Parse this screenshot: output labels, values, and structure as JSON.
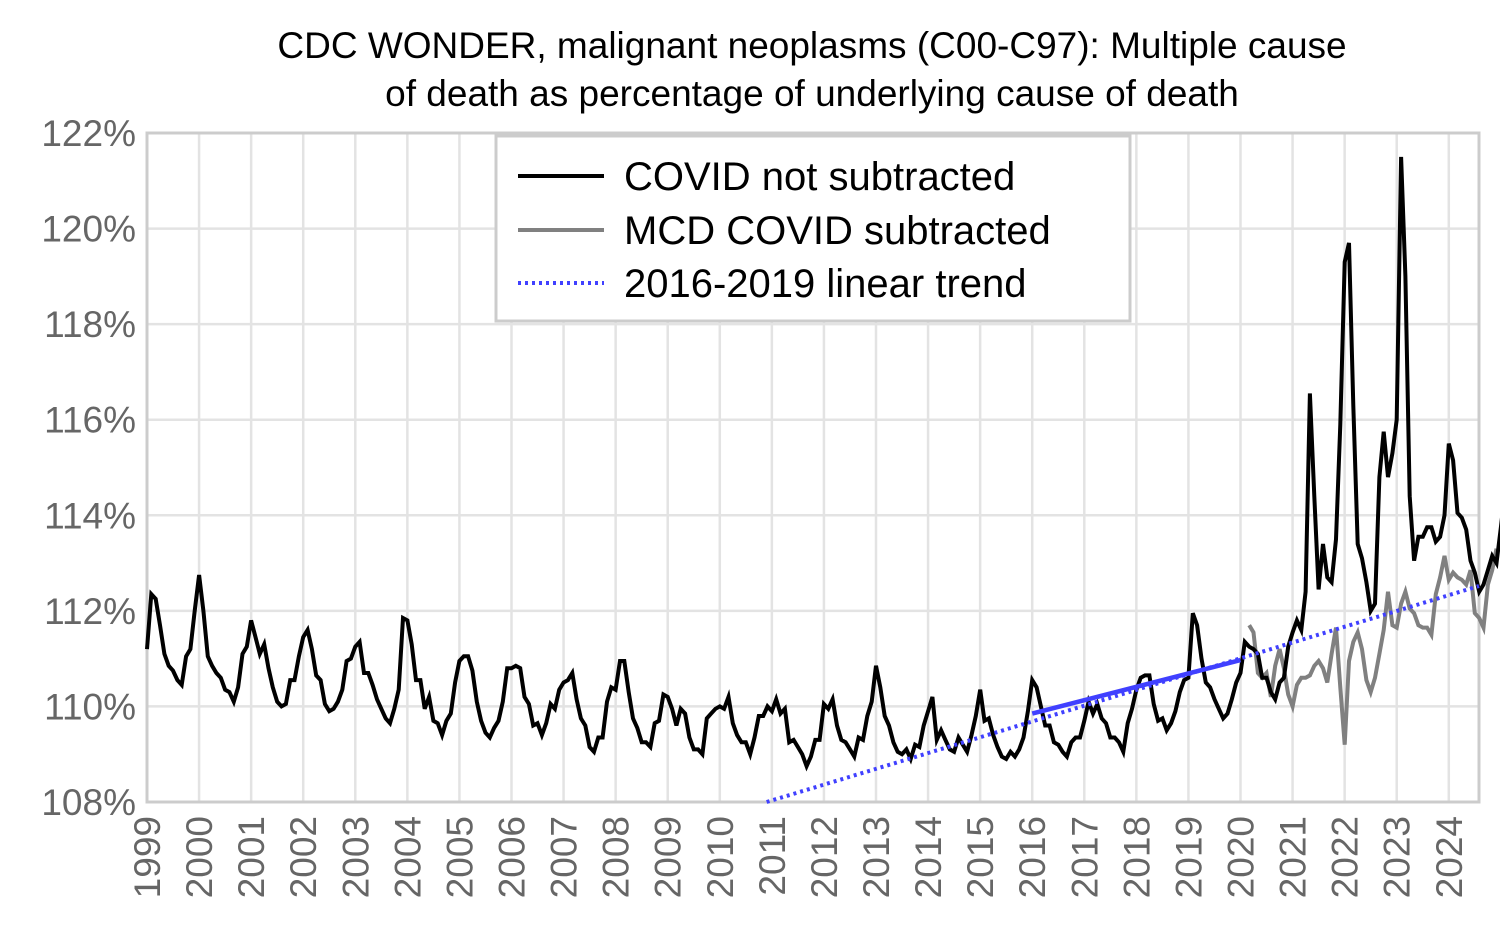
{
  "chart_data": {
    "type": "line",
    "title": "CDC WONDER, malignant neoplasms (C00-C97): Multiple cause of death as percentage of underlying cause of death",
    "title_lines": [
      "CDC WONDER, malignant neoplasms (C00-C97): Multiple cause",
      "of death as percentage of underlying cause of death"
    ],
    "xlabel": "",
    "ylabel": "",
    "x_range": [
      1999.0,
      2024.58
    ],
    "ylim": [
      108,
      122
    ],
    "y_ticks": [
      108,
      110,
      112,
      114,
      116,
      118,
      120,
      122
    ],
    "y_tick_labels": [
      "108%",
      "110%",
      "112%",
      "114%",
      "116%",
      "118%",
      "120%",
      "122%"
    ],
    "x_ticks": [
      1999,
      2000,
      2001,
      2002,
      2003,
      2004,
      2005,
      2006,
      2007,
      2008,
      2009,
      2010,
      2011,
      2012,
      2013,
      2014,
      2015,
      2016,
      2017,
      2018,
      2019,
      2020,
      2021,
      2022,
      2023,
      2024
    ],
    "x_tick_labels": [
      "1999",
      "2000",
      "2001",
      "2002",
      "2003",
      "2004",
      "2005",
      "2006",
      "2007",
      "2008",
      "2009",
      "2010",
      "2011",
      "2012",
      "2013",
      "2014",
      "2015",
      "2016",
      "2017",
      "2018",
      "2019",
      "2020",
      "2021",
      "2022",
      "2023",
      "2024"
    ],
    "grid": true,
    "legend_position": "top-center",
    "series": [
      {
        "name": "COVID not subtracted",
        "color": "#000000",
        "style": "solid",
        "start": "1999-01",
        "frequency": "monthly",
        "values": [
          111.2,
          112.35,
          112.25,
          111.7,
          111.1,
          110.85,
          110.75,
          110.55,
          110.45,
          111.05,
          111.2,
          112.0,
          112.75,
          112.0,
          111.05,
          110.85,
          110.7,
          110.6,
          110.35,
          110.3,
          110.1,
          110.4,
          111.1,
          111.25,
          111.8,
          111.45,
          111.1,
          111.3,
          110.8,
          110.4,
          110.1,
          110.0,
          110.05,
          110.55,
          110.55,
          111.05,
          111.45,
          111.6,
          111.2,
          110.65,
          110.55,
          110.05,
          109.9,
          109.95,
          110.1,
          110.35,
          110.95,
          111.0,
          111.25,
          111.35,
          110.7,
          110.7,
          110.45,
          110.15,
          109.95,
          109.75,
          109.65,
          109.95,
          110.35,
          111.85,
          111.8,
          111.3,
          110.55,
          110.55,
          109.95,
          110.2,
          109.7,
          109.65,
          109.4,
          109.7,
          109.85,
          110.5,
          110.95,
          111.05,
          111.05,
          110.75,
          110.1,
          109.7,
          109.45,
          109.35,
          109.55,
          109.7,
          110.1,
          110.8,
          110.8,
          110.85,
          110.8,
          110.2,
          110.05,
          109.6,
          109.65,
          109.4,
          109.65,
          110.05,
          109.95,
          110.35,
          110.5,
          110.55,
          110.7,
          110.15,
          109.75,
          109.6,
          109.15,
          109.05,
          109.35,
          109.35,
          110.1,
          110.4,
          110.35,
          110.95,
          110.95,
          110.3,
          109.75,
          109.55,
          109.25,
          109.25,
          109.15,
          109.65,
          109.7,
          110.25,
          110.2,
          109.95,
          109.6,
          109.95,
          109.85,
          109.35,
          109.1,
          109.1,
          109.0,
          109.75,
          109.85,
          109.95,
          110.0,
          109.95,
          110.2,
          109.65,
          109.4,
          109.25,
          109.25,
          109.0,
          109.35,
          109.8,
          109.8,
          110.0,
          109.9,
          110.15,
          109.85,
          109.95,
          109.25,
          109.3,
          109.15,
          109.0,
          108.75,
          108.95,
          109.3,
          109.3,
          110.05,
          109.95,
          110.15,
          109.6,
          109.3,
          109.25,
          109.1,
          108.95,
          109.35,
          109.3,
          109.8,
          110.1,
          110.85,
          110.4,
          109.8,
          109.6,
          109.25,
          109.05,
          109.0,
          109.1,
          108.9,
          109.2,
          109.15,
          109.6,
          109.9,
          110.2,
          109.3,
          109.5,
          109.3,
          109.1,
          109.05,
          109.35,
          109.2,
          109.05,
          109.4,
          109.8,
          110.35,
          109.7,
          109.75,
          109.4,
          109.15,
          108.95,
          108.9,
          109.05,
          108.95,
          109.1,
          109.35,
          109.9,
          110.55,
          110.4,
          110.0,
          109.6,
          109.6,
          109.25,
          109.2,
          109.05,
          108.95,
          109.25,
          109.35,
          109.35,
          109.7,
          110.1,
          109.85,
          110.05,
          109.75,
          109.65,
          109.35,
          109.35,
          109.25,
          109.05,
          109.65,
          109.95,
          110.35,
          110.6,
          110.65,
          110.65,
          110.05,
          109.7,
          109.75,
          109.5,
          109.65,
          109.9,
          110.3,
          110.55,
          110.6,
          111.95,
          111.7,
          111.0,
          110.5,
          110.4,
          110.15,
          109.95,
          109.75,
          109.85,
          110.15,
          110.5,
          110.7,
          111.35,
          111.25,
          111.2,
          111.1,
          110.6,
          110.6,
          110.3,
          110.15,
          110.5,
          110.6,
          111.25,
          111.55,
          111.8,
          111.6,
          112.4,
          116.55,
          114.4,
          112.45,
          113.4,
          112.7,
          112.6,
          113.5,
          115.9,
          119.3,
          119.7,
          116.3,
          113.4,
          113.1,
          112.6,
          112.0,
          112.15,
          114.8,
          115.75,
          114.8,
          115.3,
          116.0,
          121.5,
          119.0,
          114.4,
          113.05,
          113.55,
          113.55,
          113.75,
          113.75,
          113.45,
          113.55,
          114.0,
          115.5,
          115.15,
          114.05,
          113.95,
          113.7,
          113.05,
          112.8,
          112.4,
          112.55,
          112.85,
          113.15,
          113.0,
          113.75,
          114.55,
          115.4,
          114.2,
          113.85,
          113.3,
          113.0,
          112.8,
          113.1,
          112.85,
          112.95,
          112.95,
          113.25,
          113.35,
          113.9
        ]
      },
      {
        "name": "MCD COVID subtracted",
        "color": "#808080",
        "style": "solid",
        "start": "2020-03",
        "frequency": "monthly",
        "values": [
          111.7,
          111.55,
          110.7,
          110.6,
          110.7,
          110.2,
          110.85,
          111.2,
          110.8,
          110.25,
          110.0,
          110.45,
          110.6,
          110.6,
          110.65,
          110.85,
          110.95,
          110.8,
          110.5,
          111.1,
          111.65,
          110.4,
          109.2,
          110.95,
          111.35,
          111.55,
          111.2,
          110.55,
          110.3,
          110.6,
          111.1,
          111.6,
          112.4,
          111.7,
          111.65,
          112.15,
          112.4,
          112.05,
          111.95,
          111.7,
          111.65,
          111.65,
          111.5,
          112.35,
          112.7,
          113.15,
          112.65,
          112.8,
          112.7,
          112.65,
          112.55,
          112.85,
          111.95,
          111.85,
          111.65,
          112.55,
          112.85,
          113.3
        ]
      },
      {
        "name": "2016-2019 linear trend",
        "color": "#4040ff",
        "style": "dotted",
        "fit_period": [
          2016.0,
          2020.0
        ],
        "endpoints": [
          [
            2010.9,
            108.0
          ],
          [
            2016.0,
            109.85
          ],
          [
            2020.0,
            110.97
          ],
          [
            2024.58,
            112.52
          ]
        ]
      }
    ]
  }
}
